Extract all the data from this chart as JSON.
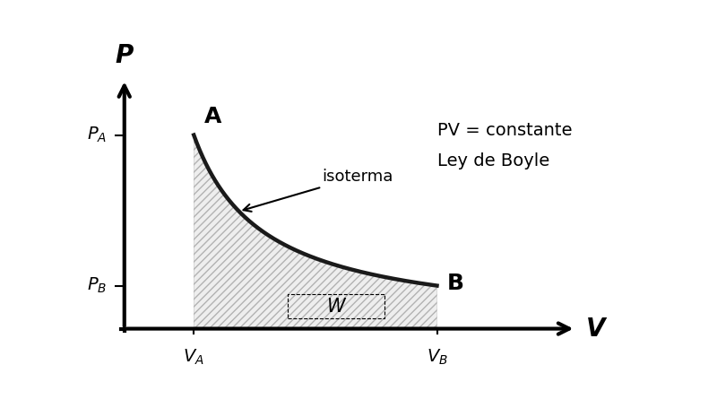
{
  "background_color": "#ffffff",
  "curve_color": "#1a1a1a",
  "curve_linewidth": 3.2,
  "fill_color": "#e8e8e8",
  "fill_alpha": 0.7,
  "hatch_pattern": "////",
  "VA": 1.0,
  "VB": 4.5,
  "k": 4.5,
  "xlabel": "V",
  "ylabel": "P",
  "label_A": "A",
  "label_B": "B",
  "label_PA": "$P_A$",
  "label_PB": "$P_B$",
  "label_VA": "$V_A$",
  "label_VB": "$V_B$",
  "label_W": "W",
  "label_isoterma": "isoterma",
  "label_pv": "PV = constante",
  "label_ley": "Ley de Boyle",
  "font_size_labels": 14,
  "font_size_axis_labels": 20,
  "font_size_AB": 18,
  "font_size_W": 15,
  "font_size_pv": 14,
  "font_size_isoterma": 13,
  "xmin": -0.5,
  "xmax": 7.5,
  "ymin": -0.8,
  "ymax": 6.5
}
